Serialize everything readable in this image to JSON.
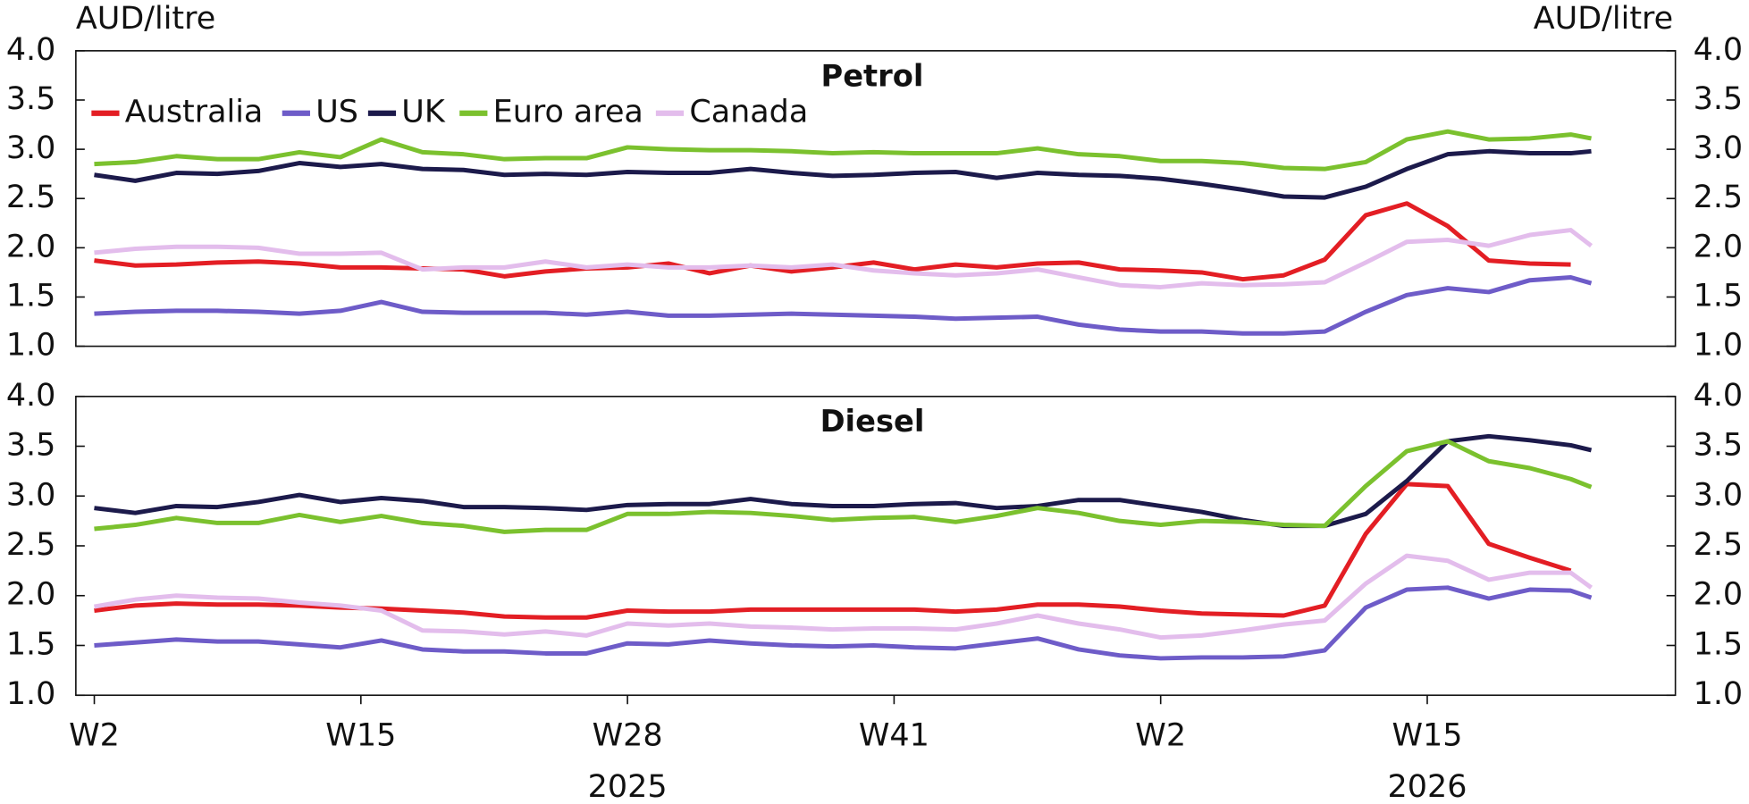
{
  "chart_data": [
    {
      "type": "line",
      "title": "Petrol",
      "ylabel": "AUD/litre",
      "y2label": "AUD/litre",
      "xlim": [
        -0.9,
        77.1
      ],
      "ylim": [
        1,
        4
      ],
      "y2lim": [
        1,
        4
      ],
      "yticks": [
        {
          "value": 1,
          "label": "1.0"
        },
        {
          "value": 1.5,
          "label": "1.5"
        },
        {
          "value": 2,
          "label": "2.0"
        },
        {
          "value": 2.5,
          "label": "2.5"
        },
        {
          "value": 3,
          "label": "3.0"
        },
        {
          "value": 3.5,
          "label": "3.5"
        },
        {
          "value": 4,
          "label": "4.0"
        }
      ],
      "y2ticks": [
        {
          "value": 1,
          "label": "1.0"
        },
        {
          "value": 1.5,
          "label": "1.5"
        },
        {
          "value": 2,
          "label": "2.0"
        },
        {
          "value": 2.5,
          "label": "2.5"
        },
        {
          "value": 3,
          "label": "3.0"
        },
        {
          "value": 3.5,
          "label": "3.5"
        },
        {
          "value": 4,
          "label": "4.0"
        }
      ],
      "legend": "upper left",
      "x": [
        0,
        2,
        4,
        6,
        8,
        10,
        12,
        14,
        16,
        18,
        20,
        22,
        24,
        26,
        28,
        30,
        32,
        34,
        36,
        38,
        40,
        42,
        44,
        46,
        48,
        50,
        52,
        54,
        56,
        58,
        60,
        62,
        64,
        66,
        68,
        70,
        72,
        73
      ],
      "series": [
        {
          "name": "Australia",
          "color": "#e31e24",
          "values": [
            1.87,
            1.82,
            1.83,
            1.85,
            1.86,
            1.84,
            1.8,
            1.8,
            1.79,
            1.78,
            1.71,
            1.76,
            1.79,
            1.8,
            1.84,
            1.74,
            1.82,
            1.76,
            1.8,
            1.85,
            1.78,
            1.83,
            1.8,
            1.84,
            1.85,
            1.78,
            1.77,
            1.75,
            1.68,
            1.72,
            1.88,
            2.33,
            2.45,
            2.22,
            1.87,
            1.84,
            1.83,
            null
          ]
        },
        {
          "name": "US",
          "color": "#6e5cc8",
          "values": [
            1.33,
            1.35,
            1.36,
            1.36,
            1.35,
            1.33,
            1.36,
            1.45,
            1.35,
            1.34,
            1.34,
            1.34,
            1.32,
            1.35,
            1.31,
            1.31,
            1.32,
            1.33,
            1.32,
            1.31,
            1.3,
            1.28,
            1.29,
            1.3,
            1.22,
            1.17,
            1.15,
            1.15,
            1.13,
            1.13,
            1.15,
            1.35,
            1.52,
            1.59,
            1.55,
            1.67,
            1.7,
            1.64
          ]
        },
        {
          "name": "UK",
          "color": "#1c1a4b",
          "values": [
            2.74,
            2.68,
            2.76,
            2.75,
            2.78,
            2.86,
            2.82,
            2.85,
            2.8,
            2.79,
            2.74,
            2.75,
            2.74,
            2.77,
            2.76,
            2.76,
            2.8,
            2.76,
            2.73,
            2.74,
            2.76,
            2.77,
            2.71,
            2.76,
            2.74,
            2.73,
            2.7,
            2.65,
            2.59,
            2.52,
            2.51,
            2.62,
            2.8,
            2.95,
            2.98,
            2.96,
            2.96,
            2.98
          ]
        },
        {
          "name": "Euro area",
          "color": "#7bc12e",
          "values": [
            2.85,
            2.87,
            2.93,
            2.9,
            2.9,
            2.97,
            2.92,
            3.1,
            2.97,
            2.95,
            2.9,
            2.91,
            2.91,
            3.02,
            3.0,
            2.99,
            2.99,
            2.98,
            2.96,
            2.97,
            2.96,
            2.96,
            2.96,
            3.01,
            2.95,
            2.93,
            2.88,
            2.88,
            2.86,
            2.81,
            2.8,
            2.87,
            3.1,
            3.18,
            3.1,
            3.11,
            3.15,
            3.11
          ]
        },
        {
          "name": "Canada",
          "color": "#e3bdec",
          "values": [
            1.95,
            1.99,
            2.01,
            2.01,
            2.0,
            1.94,
            1.94,
            1.95,
            1.78,
            1.8,
            1.8,
            1.86,
            1.8,
            1.83,
            1.8,
            1.8,
            1.82,
            1.8,
            1.83,
            1.77,
            1.74,
            1.72,
            1.74,
            1.78,
            1.7,
            1.62,
            1.6,
            1.64,
            1.62,
            1.63,
            1.65,
            1.85,
            2.06,
            2.08,
            2.02,
            2.13,
            2.18,
            2.02
          ]
        }
      ]
    },
    {
      "type": "line",
      "title": "Diesel",
      "xlim": [
        -0.9,
        77.1
      ],
      "ylim": [
        1,
        4
      ],
      "y2lim": [
        1,
        4
      ],
      "yticks": [
        {
          "value": 1,
          "label": "1.0"
        },
        {
          "value": 1.5,
          "label": "1.5"
        },
        {
          "value": 2,
          "label": "2.0"
        },
        {
          "value": 2.5,
          "label": "2.5"
        },
        {
          "value": 3,
          "label": "3.0"
        },
        {
          "value": 3.5,
          "label": "3.5"
        },
        {
          "value": 4,
          "label": "4.0"
        }
      ],
      "y2ticks": [
        {
          "value": 1,
          "label": "1.0"
        },
        {
          "value": 1.5,
          "label": "1.5"
        },
        {
          "value": 2,
          "label": "2.0"
        },
        {
          "value": 2.5,
          "label": "2.5"
        },
        {
          "value": 3,
          "label": "3.0"
        },
        {
          "value": 3.5,
          "label": "3.5"
        },
        {
          "value": 4,
          "label": "4.0"
        }
      ],
      "xticks": [
        {
          "value": 0,
          "label": "W2"
        },
        {
          "value": 13,
          "label": "W15"
        },
        {
          "value": 26,
          "label": "W28"
        },
        {
          "value": 39,
          "label": "W41"
        },
        {
          "value": 52,
          "label": "W2"
        },
        {
          "value": 65,
          "label": "W15"
        }
      ],
      "xgroups": [
        {
          "value": 26,
          "label": "2025"
        },
        {
          "value": 65,
          "label": "2026"
        }
      ],
      "x": [
        0,
        2,
        4,
        6,
        8,
        10,
        12,
        14,
        16,
        18,
        20,
        22,
        24,
        26,
        28,
        30,
        32,
        34,
        36,
        38,
        40,
        42,
        44,
        46,
        48,
        50,
        52,
        54,
        56,
        58,
        60,
        62,
        64,
        66,
        68,
        70,
        72,
        73
      ],
      "series": [
        {
          "name": "Australia",
          "color": "#e31e24",
          "values": [
            1.85,
            1.9,
            1.92,
            1.91,
            1.91,
            1.9,
            1.88,
            1.87,
            1.85,
            1.83,
            1.79,
            1.78,
            1.78,
            1.85,
            1.84,
            1.84,
            1.86,
            1.86,
            1.86,
            1.86,
            1.86,
            1.84,
            1.86,
            1.91,
            1.91,
            1.89,
            1.85,
            1.82,
            1.81,
            1.8,
            1.9,
            2.62,
            3.12,
            3.1,
            2.52,
            2.38,
            2.25,
            null
          ]
        },
        {
          "name": "US",
          "color": "#6e5cc8",
          "values": [
            1.5,
            1.53,
            1.56,
            1.54,
            1.54,
            1.51,
            1.48,
            1.55,
            1.46,
            1.44,
            1.44,
            1.42,
            1.42,
            1.52,
            1.51,
            1.55,
            1.52,
            1.5,
            1.49,
            1.5,
            1.48,
            1.47,
            1.52,
            1.57,
            1.46,
            1.4,
            1.37,
            1.38,
            1.38,
            1.39,
            1.45,
            1.88,
            2.06,
            2.08,
            1.97,
            2.06,
            2.05,
            1.98
          ]
        },
        {
          "name": "UK",
          "color": "#1c1a4b",
          "values": [
            2.88,
            2.83,
            2.9,
            2.89,
            2.94,
            3.01,
            2.94,
            2.98,
            2.95,
            2.89,
            2.89,
            2.88,
            2.86,
            2.91,
            2.92,
            2.92,
            2.97,
            2.92,
            2.9,
            2.9,
            2.92,
            2.93,
            2.88,
            2.9,
            2.96,
            2.96,
            2.9,
            2.84,
            2.76,
            2.7,
            2.7,
            2.82,
            3.15,
            3.55,
            3.6,
            3.56,
            3.51,
            3.46
          ]
        },
        {
          "name": "Euro area",
          "color": "#7bc12e",
          "values": [
            2.67,
            2.71,
            2.78,
            2.73,
            2.73,
            2.81,
            2.74,
            2.8,
            2.73,
            2.7,
            2.64,
            2.66,
            2.66,
            2.82,
            2.82,
            2.84,
            2.83,
            2.8,
            2.76,
            2.78,
            2.79,
            2.74,
            2.8,
            2.88,
            2.83,
            2.75,
            2.71,
            2.75,
            2.74,
            2.71,
            2.7,
            3.1,
            3.45,
            3.55,
            3.35,
            3.28,
            3.17,
            3.09
          ]
        },
        {
          "name": "Canada",
          "color": "#e3bdec",
          "values": [
            1.89,
            1.96,
            2.0,
            1.98,
            1.97,
            1.93,
            1.9,
            1.85,
            1.65,
            1.64,
            1.61,
            1.64,
            1.6,
            1.72,
            1.7,
            1.72,
            1.69,
            1.68,
            1.66,
            1.67,
            1.67,
            1.66,
            1.72,
            1.8,
            1.72,
            1.66,
            1.58,
            1.6,
            1.65,
            1.71,
            1.75,
            2.12,
            2.4,
            2.35,
            2.16,
            2.23,
            2.23,
            2.08
          ]
        }
      ]
    }
  ]
}
